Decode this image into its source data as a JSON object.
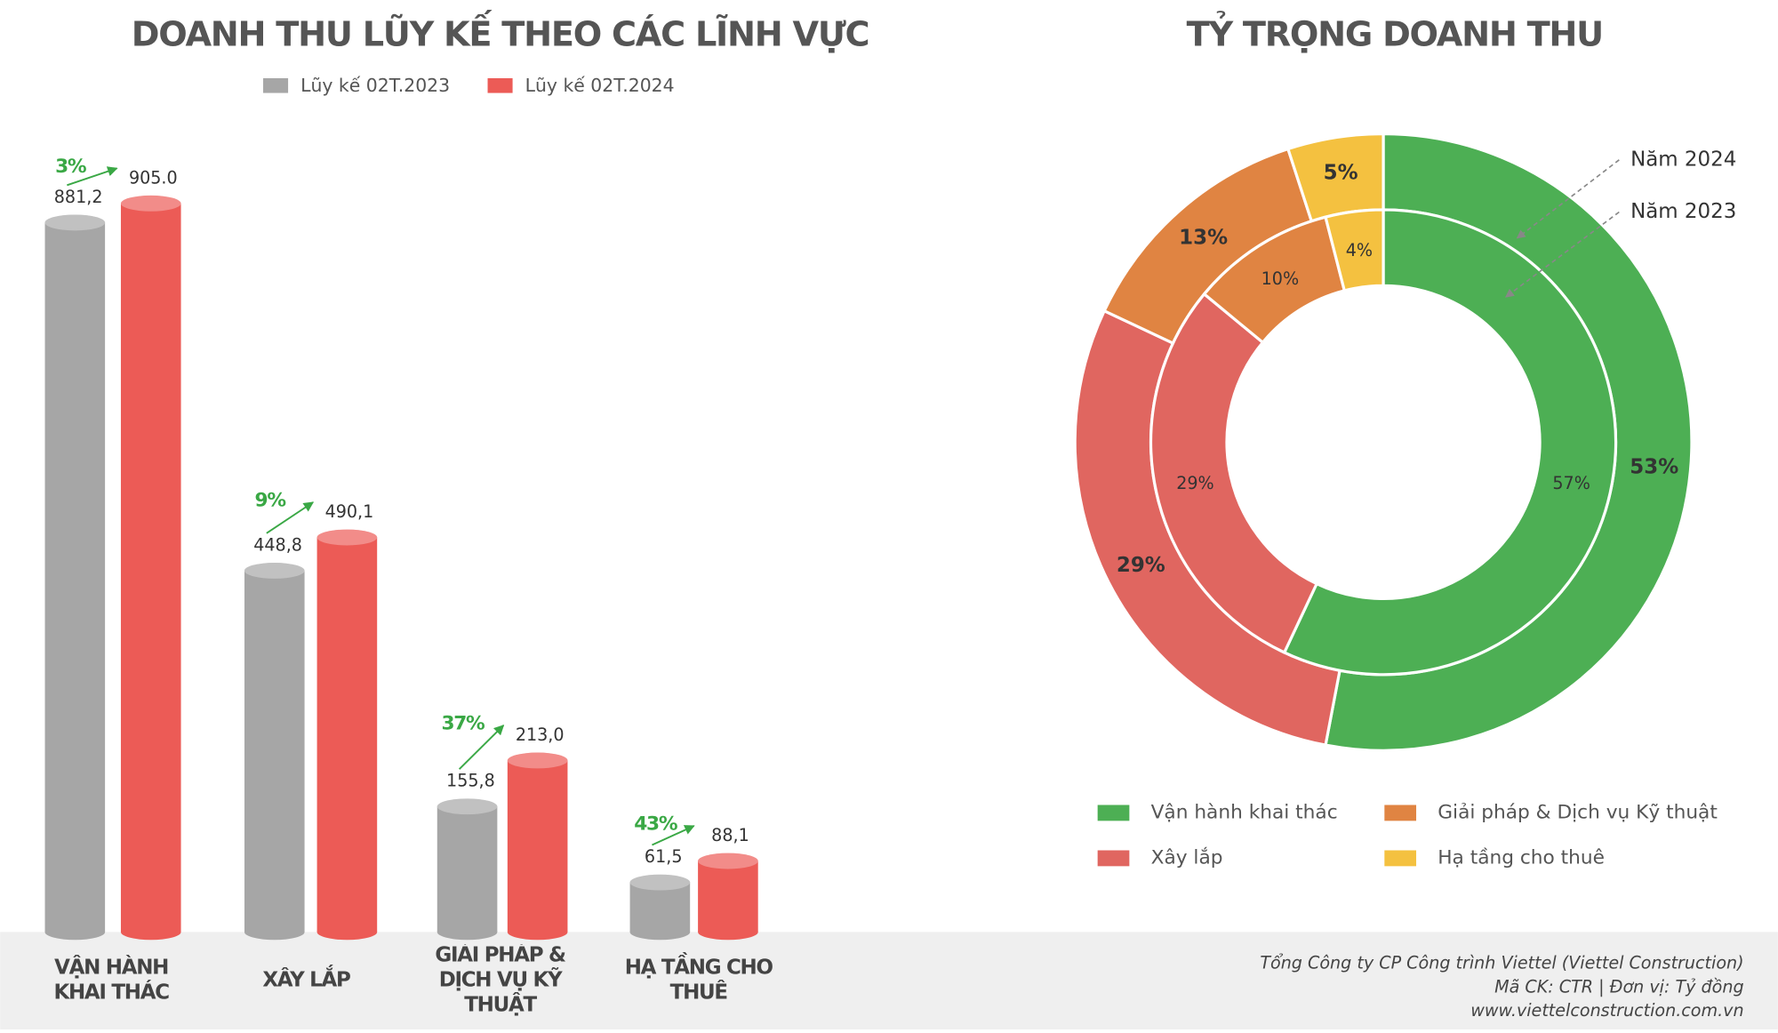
{
  "chart_data": [
    {
      "type": "bar",
      "title": "DOANH THU LŨY KẾ THEO CÁC LĨNH VỰC",
      "categories": [
        "VẬN HÀNH KHAI THÁC",
        "XÂY LẮP",
        "GIẢI PHÁP & DỊCH VỤ KỸ THUẬT",
        "HẠ TẦNG CHO THUÊ"
      ],
      "series": [
        {
          "name": "Lũy kế 02T.2023",
          "color": "#a6a6a6",
          "values": [
            881.2,
            448.8,
            155.8,
            61.5
          ],
          "value_labels": [
            "881,2",
            "448,8",
            "155,8",
            "61,5"
          ]
        },
        {
          "name": "Lũy kế 02T.2024",
          "color": "#ec5b56",
          "values": [
            905.0,
            490.1,
            213.0,
            88.1
          ],
          "value_labels": [
            "905.0",
            "490,1",
            "213,0",
            "88,1"
          ]
        }
      ],
      "growth": [
        3,
        9,
        37,
        43
      ],
      "growth_labels": [
        "3%",
        "9%",
        "37%",
        "43%"
      ],
      "growth_color": "#3aa845",
      "ylim": [
        0,
        1000
      ],
      "legend": "top"
    },
    {
      "type": "pie",
      "title": "TỶ TRỌNG DOANH THU",
      "categories": [
        "Vận hành khai thác",
        "Xây lắp",
        "Giải pháp & Dịch vụ Kỹ thuật",
        "Hạ tầng cho thuê"
      ],
      "colors": [
        "#4daf54",
        "#e06660",
        "#e08442",
        "#f4c140"
      ],
      "series": [
        {
          "name": "Năm 2024",
          "values": [
            53,
            29,
            13,
            5
          ],
          "value_labels": [
            "53%",
            "29%",
            "13%",
            "5%"
          ]
        },
        {
          "name": "Năm 2023",
          "values": [
            57,
            29,
            10,
            4
          ],
          "value_labels": [
            "57%",
            "29%",
            "10%",
            "4%"
          ]
        }
      ],
      "legend": "bottom"
    }
  ],
  "footer": {
    "lines": [
      "Tổng Công ty CP Công trình Viettel (Viettel Construction)",
      "Mã CK: CTR  |  Đơn vị: Tỷ đồng",
      "www.viettelconstruction.com.vn"
    ]
  }
}
